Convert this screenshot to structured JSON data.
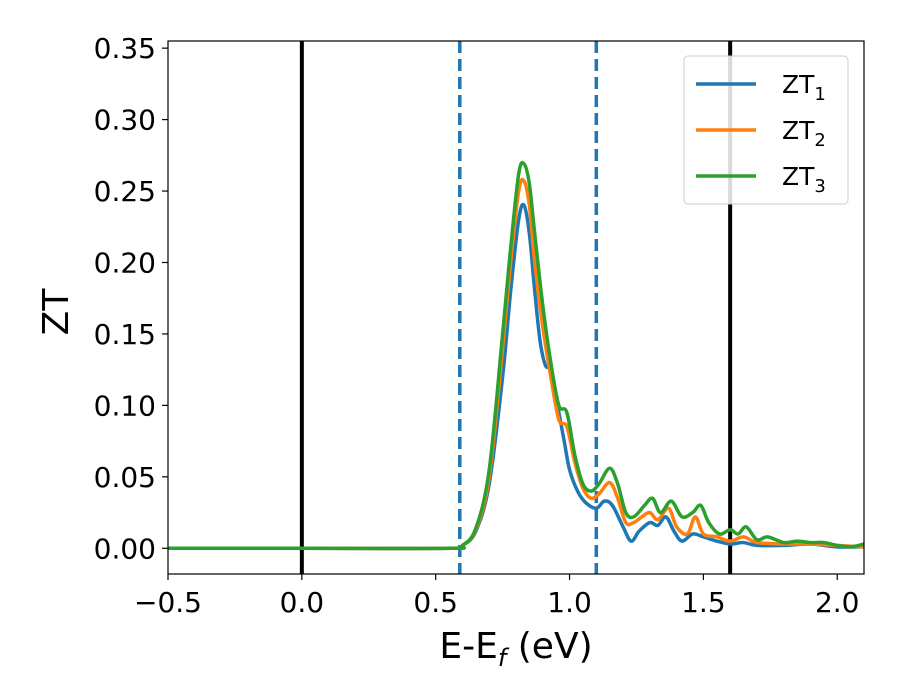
{
  "chart_data": {
    "type": "line",
    "xlabel": "E-E_f (eV)",
    "xlabel_parts": {
      "main": "E-E",
      "sub": "f",
      "tail": " (eV)"
    },
    "ylabel": "ZT",
    "xlim": [
      -0.5,
      2.1
    ],
    "ylim": [
      -0.018,
      0.355
    ],
    "xticks": [
      -0.5,
      0.0,
      0.5,
      1.0,
      1.5,
      2.0
    ],
    "xtick_labels": [
      "−0.5",
      "0.0",
      "0.5",
      "1.0",
      "1.5",
      "2.0"
    ],
    "yticks": [
      0.0,
      0.05,
      0.1,
      0.15,
      0.2,
      0.25,
      0.3,
      0.35
    ],
    "ytick_labels": [
      "0.00",
      "0.05",
      "0.10",
      "0.15",
      "0.20",
      "0.25",
      "0.30",
      "0.35"
    ],
    "grid": false,
    "legend_position": "top-right",
    "vertical_lines": [
      {
        "x": 0.0,
        "style": "solid",
        "color": "#000000"
      },
      {
        "x": 0.59,
        "style": "dashed",
        "color": "#1f77b4"
      },
      {
        "x": 1.1,
        "style": "dashed",
        "color": "#1f77b4"
      },
      {
        "x": 1.6,
        "style": "solid",
        "color": "#000000"
      }
    ],
    "series": [
      {
        "name": "ZT_1",
        "label_main": "ZT",
        "label_sub": "1",
        "color": "#1f77b4",
        "points": [
          [
            -0.5,
            0
          ],
          [
            0.0,
            0
          ],
          [
            0.55,
            0
          ],
          [
            0.6,
            0.002
          ],
          [
            0.65,
            0.012
          ],
          [
            0.7,
            0.045
          ],
          [
            0.75,
            0.12
          ],
          [
            0.78,
            0.18
          ],
          [
            0.81,
            0.23
          ],
          [
            0.83,
            0.24
          ],
          [
            0.85,
            0.22
          ],
          [
            0.87,
            0.18
          ],
          [
            0.89,
            0.145
          ],
          [
            0.91,
            0.128
          ],
          [
            0.93,
            0.125
          ],
          [
            0.95,
            0.105
          ],
          [
            0.98,
            0.075
          ],
          [
            1.0,
            0.055
          ],
          [
            1.03,
            0.04
          ],
          [
            1.06,
            0.032
          ],
          [
            1.1,
            0.028
          ],
          [
            1.13,
            0.033
          ],
          [
            1.16,
            0.03
          ],
          [
            1.2,
            0.015
          ],
          [
            1.23,
            0.005
          ],
          [
            1.26,
            0.012
          ],
          [
            1.3,
            0.018
          ],
          [
            1.33,
            0.016
          ],
          [
            1.36,
            0.022
          ],
          [
            1.39,
            0.012
          ],
          [
            1.42,
            0.005
          ],
          [
            1.46,
            0.01
          ],
          [
            1.5,
            0.008
          ],
          [
            1.55,
            0.005
          ],
          [
            1.6,
            0.003
          ],
          [
            1.65,
            0.004
          ],
          [
            1.7,
            0.002
          ],
          [
            1.8,
            0.002
          ],
          [
            1.9,
            0.003
          ],
          [
            2.0,
            0.001
          ],
          [
            2.1,
            0.001
          ]
        ]
      },
      {
        "name": "ZT_2",
        "label_main": "ZT",
        "label_sub": "2",
        "color": "#ff7f0e",
        "points": [
          [
            -0.5,
            0
          ],
          [
            0.0,
            0
          ],
          [
            0.55,
            0
          ],
          [
            0.6,
            0.002
          ],
          [
            0.65,
            0.013
          ],
          [
            0.7,
            0.05
          ],
          [
            0.75,
            0.14
          ],
          [
            0.78,
            0.2
          ],
          [
            0.81,
            0.25
          ],
          [
            0.83,
            0.257
          ],
          [
            0.85,
            0.24
          ],
          [
            0.87,
            0.2
          ],
          [
            0.9,
            0.155
          ],
          [
            0.93,
            0.12
          ],
          [
            0.96,
            0.09
          ],
          [
            0.99,
            0.085
          ],
          [
            1.02,
            0.06
          ],
          [
            1.05,
            0.042
          ],
          [
            1.08,
            0.035
          ],
          [
            1.11,
            0.038
          ],
          [
            1.15,
            0.046
          ],
          [
            1.18,
            0.035
          ],
          [
            1.21,
            0.018
          ],
          [
            1.24,
            0.018
          ],
          [
            1.27,
            0.022
          ],
          [
            1.3,
            0.025
          ],
          [
            1.33,
            0.02
          ],
          [
            1.37,
            0.028
          ],
          [
            1.4,
            0.015
          ],
          [
            1.44,
            0.01
          ],
          [
            1.47,
            0.022
          ],
          [
            1.5,
            0.01
          ],
          [
            1.55,
            0.008
          ],
          [
            1.6,
            0.005
          ],
          [
            1.65,
            0.008
          ],
          [
            1.7,
            0.004
          ],
          [
            1.8,
            0.003
          ],
          [
            1.9,
            0.003
          ],
          [
            2.0,
            0.002
          ],
          [
            2.1,
            0.001
          ]
        ]
      },
      {
        "name": "ZT_3",
        "label_main": "ZT",
        "label_sub": "3",
        "color": "#2ca02c",
        "points": [
          [
            -0.5,
            0
          ],
          [
            0.0,
            0
          ],
          [
            0.55,
            0
          ],
          [
            0.6,
            0.002
          ],
          [
            0.65,
            0.014
          ],
          [
            0.7,
            0.055
          ],
          [
            0.75,
            0.15
          ],
          [
            0.78,
            0.21
          ],
          [
            0.81,
            0.262
          ],
          [
            0.83,
            0.269
          ],
          [
            0.85,
            0.255
          ],
          [
            0.87,
            0.22
          ],
          [
            0.9,
            0.17
          ],
          [
            0.93,
            0.13
          ],
          [
            0.96,
            0.1
          ],
          [
            0.99,
            0.095
          ],
          [
            1.02,
            0.065
          ],
          [
            1.05,
            0.045
          ],
          [
            1.08,
            0.04
          ],
          [
            1.11,
            0.045
          ],
          [
            1.15,
            0.056
          ],
          [
            1.18,
            0.045
          ],
          [
            1.21,
            0.025
          ],
          [
            1.24,
            0.022
          ],
          [
            1.28,
            0.03
          ],
          [
            1.31,
            0.035
          ],
          [
            1.34,
            0.025
          ],
          [
            1.38,
            0.033
          ],
          [
            1.42,
            0.022
          ],
          [
            1.46,
            0.025
          ],
          [
            1.49,
            0.03
          ],
          [
            1.52,
            0.018
          ],
          [
            1.56,
            0.01
          ],
          [
            1.6,
            0.013
          ],
          [
            1.63,
            0.01
          ],
          [
            1.66,
            0.015
          ],
          [
            1.7,
            0.006
          ],
          [
            1.74,
            0.008
          ],
          [
            1.8,
            0.004
          ],
          [
            1.85,
            0.005
          ],
          [
            1.9,
            0.004
          ],
          [
            1.95,
            0.004
          ],
          [
            2.0,
            0.002
          ],
          [
            2.05,
            0.001
          ],
          [
            2.1,
            0.003
          ]
        ]
      }
    ]
  }
}
